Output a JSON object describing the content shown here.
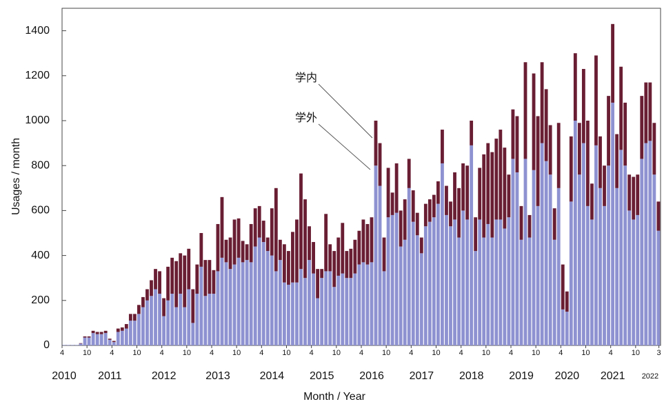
{
  "chart_data": {
    "type": "stacked_bar",
    "x_label": "Month / Year",
    "y_label": "Usages / month",
    "categories": [
      "4",
      null,
      null,
      null,
      null,
      null,
      "10",
      null,
      null,
      null,
      null,
      null,
      "4",
      null,
      null,
      null,
      null,
      null,
      "10",
      null,
      null,
      null,
      null,
      null,
      "4",
      null,
      null,
      null,
      null,
      null,
      "10",
      null,
      null,
      null,
      null,
      null,
      "4",
      null,
      null,
      null,
      null,
      null,
      "10",
      null,
      null,
      null,
      null,
      null,
      "4",
      null,
      null,
      null,
      null,
      null,
      "10",
      null,
      null,
      null,
      null,
      null,
      "4",
      null,
      null,
      null,
      null,
      null,
      "10",
      null,
      null,
      null,
      null,
      null,
      "4",
      null,
      null,
      null,
      null,
      null,
      "10",
      null,
      null,
      null,
      null,
      null,
      "4",
      null,
      null,
      null,
      null,
      null,
      "10",
      null,
      null,
      null,
      null,
      null,
      "4",
      null,
      null,
      null,
      null,
      null,
      "10",
      null,
      null,
      null,
      null,
      null,
      "4",
      null,
      null,
      null,
      null,
      null,
      "10",
      null,
      null,
      null,
      null,
      null,
      "4",
      null,
      null,
      null,
      null,
      null,
      "10",
      null,
      null,
      null,
      null,
      null,
      "4",
      null,
      null,
      null,
      null,
      null,
      "10",
      null,
      null,
      null,
      null,
      "3"
    ],
    "year_categories": [
      "2010",
      null,
      null,
      null,
      null,
      null,
      null,
      null,
      null,
      null,
      null,
      "2011",
      null,
      null,
      null,
      null,
      null,
      null,
      null,
      null,
      null,
      null,
      null,
      null,
      "2012",
      null,
      null,
      null,
      null,
      null,
      null,
      null,
      null,
      null,
      null,
      null,
      null,
      "2013",
      null,
      null,
      null,
      null,
      null,
      null,
      null,
      null,
      null,
      null,
      null,
      null,
      "2014",
      null,
      null,
      null,
      null,
      null,
      null,
      null,
      null,
      null,
      null,
      null,
      "2015",
      null,
      null,
      null,
      null,
      null,
      null,
      null,
      null,
      null,
      null,
      null,
      "2016",
      null,
      null,
      null,
      null,
      null,
      null,
      null,
      null,
      null,
      null,
      null,
      "2017",
      null,
      null,
      null,
      null,
      null,
      null,
      null,
      null,
      null,
      null,
      null,
      "2018",
      null,
      null,
      null,
      null,
      null,
      null,
      null,
      null,
      null,
      null,
      null,
      "2019",
      null,
      null,
      null,
      null,
      null,
      null,
      null,
      null,
      null,
      null,
      "2020",
      null,
      null,
      null,
      null,
      null,
      null,
      null,
      null,
      null,
      null,
      "2021",
      null,
      null,
      null,
      null,
      null,
      null,
      null,
      null,
      "2022",
      null,
      null
    ],
    "series": [
      {
        "name": "学外",
        "color": "#8e92d0",
        "values": [
          2,
          2,
          2,
          2,
          8,
          35,
          35,
          55,
          50,
          50,
          55,
          25,
          15,
          60,
          65,
          75,
          110,
          110,
          140,
          170,
          200,
          220,
          250,
          230,
          130,
          200,
          230,
          170,
          230,
          170,
          250,
          100,
          230,
          350,
          220,
          230,
          230,
          330,
          390,
          370,
          340,
          360,
          390,
          370,
          380,
          370,
          440,
          480,
          460,
          420,
          400,
          330,
          380,
          280,
          270,
          280,
          280,
          340,
          300,
          380,
          320,
          210,
          300,
          330,
          330,
          260,
          310,
          320,
          300,
          300,
          320,
          360,
          370,
          360,
          370,
          800,
          710,
          330,
          570,
          580,
          590,
          440,
          470,
          700,
          550,
          490,
          410,
          530,
          550,
          570,
          630,
          810,
          580,
          530,
          560,
          480,
          600,
          560,
          890,
          420,
          560,
          480,
          540,
          480,
          560,
          560,
          520,
          570,
          830,
          770,
          470,
          830,
          480,
          780,
          620,
          900,
          820,
          760,
          470,
          700,
          160,
          150,
          640,
          1000,
          760,
          900,
          620,
          560,
          890,
          700,
          620,
          800,
          1080,
          700,
          870,
          800,
          600,
          560,
          580,
          830,
          900,
          910,
          760,
          510
        ]
      },
      {
        "name": "学内",
        "color": "#6a1e34",
        "values": [
          0,
          0,
          0,
          0,
          2,
          5,
          5,
          10,
          10,
          10,
          10,
          5,
          5,
          15,
          15,
          20,
          30,
          30,
          40,
          45,
          50,
          70,
          90,
          100,
          80,
          150,
          160,
          205,
          180,
          230,
          180,
          150,
          130,
          150,
          160,
          150,
          105,
          210,
          270,
          100,
          140,
          200,
          175,
          95,
          70,
          170,
          170,
          140,
          95,
          60,
          210,
          370,
          90,
          170,
          150,
          225,
          280,
          425,
          350,
          150,
          140,
          130,
          40,
          255,
          120,
          160,
          170,
          225,
          120,
          130,
          150,
          150,
          190,
          180,
          200,
          200,
          190,
          150,
          220,
          100,
          220,
          160,
          180,
          130,
          140,
          100,
          70,
          100,
          100,
          100,
          100,
          150,
          130,
          110,
          210,
          220,
          210,
          240,
          110,
          150,
          230,
          370,
          360,
          380,
          360,
          400,
          360,
          190,
          220,
          250,
          150,
          430,
          100,
          430,
          400,
          360,
          320,
          220,
          140,
          290,
          200,
          90,
          290,
          300,
          230,
          330,
          380,
          160,
          400,
          230,
          180,
          310,
          350,
          240,
          370,
          280,
          160,
          190,
          180,
          280,
          270,
          260,
          230,
          130
        ]
      }
    ],
    "ylim": [
      0,
      1500
    ],
    "yticks": [
      0,
      200,
      400,
      600,
      800,
      1000,
      1200,
      1400
    ]
  }
}
